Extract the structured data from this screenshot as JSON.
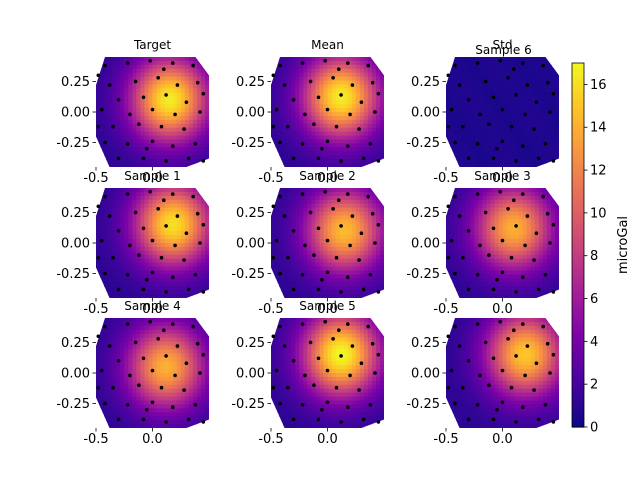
{
  "chart_data": {
    "type": "heatmap",
    "colormap": "plasma",
    "panels": [
      {
        "title": "Target",
        "peak": [
          0.15,
          0.1
        ],
        "amp": 16.5
      },
      {
        "title": "Mean",
        "peak": [
          0.12,
          0.12
        ],
        "amp": 16.5
      },
      {
        "title": "Std",
        "peak": [
          0.0,
          0.0
        ],
        "amp": 0.8,
        "overlay_title": "Sample 6"
      },
      {
        "title": "Sample 1",
        "peak": [
          0.18,
          0.15
        ],
        "amp": 16.0
      },
      {
        "title": "Sample 2",
        "peak": [
          0.15,
          0.1
        ],
        "amp": 14.5
      },
      {
        "title": "Sample 3",
        "peak": [
          0.1,
          0.12
        ],
        "amp": 14.0
      },
      {
        "title": "Sample 4",
        "peak": [
          0.12,
          0.05
        ],
        "amp": 14.0
      },
      {
        "title": "Sample 5",
        "peak": [
          0.12,
          0.15
        ],
        "amp": 17.0
      },
      {
        "title": "",
        "peak": [
          0.2,
          0.15
        ],
        "amp": 15.0
      }
    ],
    "xticks": [
      "-0.5",
      "0.0"
    ],
    "xtick_values": [
      -0.5,
      0.0
    ],
    "yticks": [
      "0.25",
      "0.00",
      "-0.25"
    ],
    "ytick_values": [
      0.25,
      0.0,
      -0.25
    ],
    "xlim": [
      -0.5,
      0.5
    ],
    "ylim": [
      -0.45,
      0.45
    ],
    "colorbar": {
      "label": "microGal",
      "ticks": [
        "0",
        "2",
        "4",
        "6",
        "8",
        "10",
        "12",
        "14",
        "16"
      ],
      "tick_values": [
        0,
        2,
        4,
        6,
        8,
        10,
        12,
        14,
        16
      ],
      "range": [
        0,
        17
      ]
    },
    "stations": [
      [
        -0.42,
        0.38
      ],
      [
        -0.22,
        0.4
      ],
      [
        -0.02,
        0.42
      ],
      [
        0.18,
        0.4
      ],
      [
        0.36,
        0.38
      ],
      [
        -0.38,
        0.22
      ],
      [
        -0.15,
        0.25
      ],
      [
        0.05,
        0.28
      ],
      [
        0.22,
        0.22
      ],
      [
        0.4,
        0.24
      ],
      [
        -0.3,
        0.1
      ],
      [
        -0.08,
        0.12
      ],
      [
        0.12,
        0.14
      ],
      [
        0.3,
        0.08
      ],
      [
        -0.45,
        0.02
      ],
      [
        -0.2,
        -0.02
      ],
      [
        0.0,
        0.02
      ],
      [
        0.2,
        -0.02
      ],
      [
        0.42,
        0.0
      ],
      [
        -0.35,
        -0.12
      ],
      [
        -0.12,
        -0.1
      ],
      [
        0.08,
        -0.12
      ],
      [
        0.28,
        -0.14
      ],
      [
        -0.42,
        -0.25
      ],
      [
        -0.22,
        -0.26
      ],
      [
        0.0,
        -0.24
      ],
      [
        0.18,
        -0.28
      ],
      [
        0.38,
        -0.26
      ],
      [
        -0.3,
        -0.38
      ],
      [
        -0.08,
        -0.38
      ],
      [
        0.12,
        -0.4
      ],
      [
        0.32,
        -0.38
      ],
      [
        -0.48,
        0.3
      ],
      [
        0.45,
        0.15
      ],
      [
        -0.48,
        -0.12
      ],
      [
        0.45,
        -0.4
      ],
      [
        0.1,
        0.35
      ],
      [
        -0.05,
        -0.3
      ]
    ]
  }
}
